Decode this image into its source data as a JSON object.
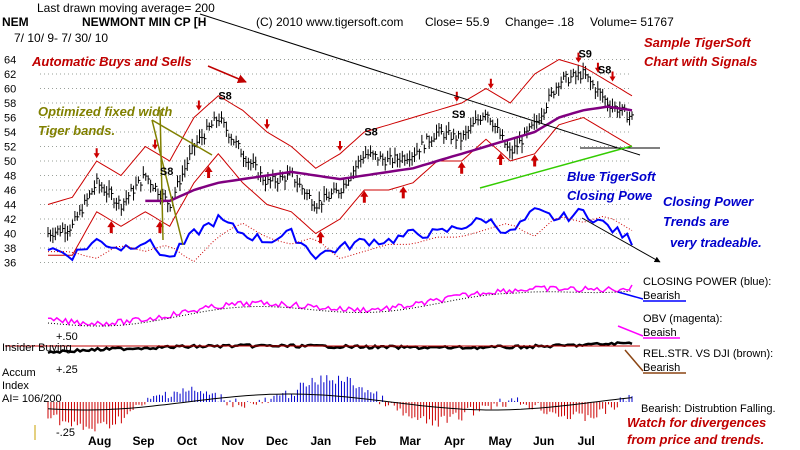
{
  "header": {
    "line1": "Last drawn moving average= 200",
    "ticker": "NEM",
    "name": "NEWMONT MIN CP [H",
    "date_range": "7/ 10/ 9- 7/ 30/ 10",
    "copyright": "(C) 2010 www.tigersoft.com",
    "close": "Close= 55.9",
    "change": "Change= .18",
    "volume": "Volume= 51767"
  },
  "annotations": {
    "sample1": "Sample TigerSoft",
    "sample2": "Chart with Signals",
    "auto": "Automatic Buys and Sells",
    "opt1": "Optimized fixed width",
    "opt2": "Tiger bands.",
    "blue1": "Blue TigerSoft",
    "blue2": "Closing Powe",
    "cp1": "Closing Power",
    "cp2": "Trends are",
    "cp3": "very tradeable.",
    "cp_label": "CLOSING POWER (blue):",
    "cp_state": "Bearish",
    "obv_label": "OBV (magenta):",
    "obv_state": "Beaish",
    "rel_label": "REL.STR. VS DJI (brown):",
    "rel_state": "Bearish",
    "bearish_dist": "Bearish: Distrubtion Falling.",
    "watch1": "Watch for divergences",
    "watch2": "from price and trends.",
    "insider": "Insider Buying",
    "accum1": "Accum",
    "accum2": "Index",
    "ai": "AI= 106/200",
    "plus50": "+.50",
    "plus25": "+.25",
    "minus25": "-.25"
  },
  "signals": [
    {
      "label": "S8",
      "month_index": 3.5
    },
    {
      "label": "S8",
      "month_index": 2.3
    },
    {
      "label": "S8",
      "month_index": 6.5
    },
    {
      "label": "S9",
      "month_index": 8.3
    },
    {
      "label": "S9",
      "month_index": 10.9
    },
    {
      "label": "S8",
      "month_index": 11.3
    }
  ],
  "colors": {
    "price": "#000000",
    "band": "#cc0000",
    "ma_purple": "#800080",
    "ma200": "#000000",
    "green_line": "#33cc00",
    "closing_power": "#0000ff",
    "obv": "#ff00ff",
    "rel_str": "#000000",
    "accum_pos": "#0000cc",
    "accum_neg": "#cc0000",
    "grid": "#9aa09a"
  },
  "chart_data": {
    "type": "line",
    "title": "NEWMONT MIN CP [H",
    "xlabel": "",
    "ylabel": "",
    "ylim": [
      34,
      66
    ],
    "y_ticks": [
      64,
      62,
      60,
      58,
      56,
      54,
      52,
      50,
      48,
      46,
      44,
      42,
      40,
      38,
      36
    ],
    "categories": [
      "Aug",
      "Sep",
      "Oct",
      "Nov",
      "Dec",
      "Jan",
      "Feb",
      "Mar",
      "Apr",
      "May",
      "Jun",
      "Jul"
    ],
    "x": [
      0,
      0.5,
      1,
      1.5,
      2,
      2.5,
      3,
      3.5,
      4,
      4.5,
      5,
      5.5,
      6,
      6.5,
      7,
      7.5,
      8,
      8.5,
      9,
      9.5,
      10,
      10.5,
      11,
      11.5,
      12
    ],
    "series": [
      {
        "name": "Price (Close)",
        "values": [
          40,
          41,
          47,
          44,
          48,
          44,
          52,
          56,
          51,
          47,
          48,
          44,
          46,
          51,
          50,
          51,
          54,
          53,
          57,
          51,
          55,
          61,
          62,
          58,
          56
        ]
      },
      {
        "name": "Upper band",
        "values": [
          44,
          45,
          50,
          48,
          52,
          50,
          56,
          59,
          57,
          54,
          52,
          49,
          51,
          54,
          55,
          56,
          57,
          58,
          60,
          58,
          62,
          64,
          63,
          61,
          59
        ]
      },
      {
        "name": "Lower band",
        "values": [
          37,
          37,
          43,
          41,
          43,
          41,
          47,
          51,
          47,
          44,
          43,
          40,
          42,
          46,
          46,
          47,
          50,
          50,
          53,
          50,
          51,
          55,
          56,
          54,
          52
        ]
      },
      {
        "name": "Moving average (purple)",
        "values": [
          null,
          null,
          null,
          null,
          null,
          44.5,
          46,
          47,
          47.5,
          48,
          48.5,
          48,
          47.5,
          48,
          48.5,
          49,
          50,
          51,
          52,
          53,
          54,
          56,
          57,
          57.5,
          57
        ]
      },
      {
        "name": "Closing Power",
        "values": [
          38,
          37,
          39,
          38,
          39,
          36.5,
          40,
          42,
          40,
          39,
          40,
          37,
          38,
          39,
          39,
          40,
          40,
          41,
          42,
          40,
          43,
          42,
          43,
          41,
          39
        ]
      }
    ]
  }
}
